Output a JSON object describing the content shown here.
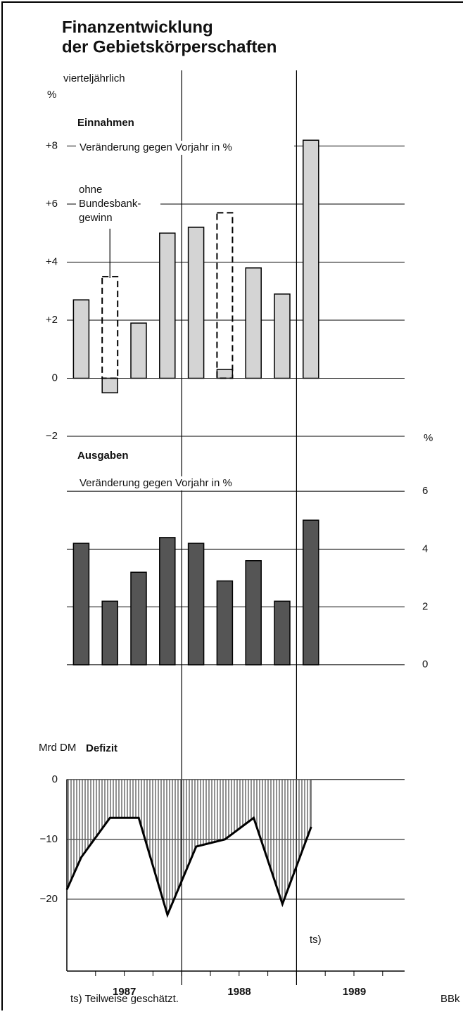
{
  "title_lines": [
    "Finanzentwicklung",
    "der Gebietskörperschaften"
  ],
  "subtitle": "vierteljährlich",
  "footnote": "ts) Teilweise geschätzt.",
  "source": "BBk",
  "chart_data": [
    {
      "type": "bar",
      "title": "Einnahmen",
      "subtitle": "Veränderung gegen Vorjahr in %",
      "y_label": "%",
      "y_axis": "left",
      "categories": [
        null,
        null,
        null,
        null,
        null,
        null,
        null,
        null,
        null
      ],
      "ylim": [
        -2,
        10
      ],
      "yticks": [
        {
          "value": 8,
          "label": "+8"
        },
        {
          "value": 6,
          "label": "+6"
        },
        {
          "value": 4,
          "label": "+4"
        },
        {
          "value": 2,
          "label": "+2"
        },
        0,
        {
          "value": -2,
          "label": "−2"
        }
      ],
      "grid": true,
      "series": [
        {
          "color": "#d4d4d4",
          "values": [
            2.7,
            -0.5,
            1.9,
            5.0,
            5.2,
            0.3,
            3.8,
            2.9,
            8.2
          ]
        },
        {
          "label_lines": [
            "ohne",
            "Bundesbank-",
            "gewinn"
          ],
          "style": "dashed",
          "values": [
            null,
            3.5,
            null,
            null,
            null,
            5.7,
            null,
            null,
            null
          ]
        }
      ]
    },
    {
      "type": "bar",
      "title": "Ausgaben",
      "subtitle": "Veränderung gegen Vorjahr in %",
      "y_label": "%",
      "y_axis": "right",
      "categories": [
        null,
        null,
        null,
        null,
        null,
        null,
        null,
        null,
        null
      ],
      "ylim": [
        -2,
        7.9
      ],
      "yticks": [
        6,
        4,
        2,
        0
      ],
      "grid": true,
      "series": [
        {
          "color": "#555555",
          "values": [
            4.2,
            2.2,
            3.2,
            4.4,
            4.2,
            2.9,
            3.6,
            2.2,
            5.0
          ]
        }
      ]
    },
    {
      "type": "area",
      "title": "Defizit",
      "y_label": "Mrd DM",
      "y_axis": "left",
      "x": [
        0,
        0.5,
        1.5,
        2.5,
        3.5,
        4.5,
        5.5,
        6.5,
        7.5,
        8.5
      ],
      "xlim": [
        0,
        11.75
      ],
      "xticks": [
        {
          "value": 2,
          "label": "1987"
        },
        {
          "value": 6,
          "label": "1988"
        },
        {
          "value": 10,
          "label": "1989"
        }
      ],
      "ylim": [
        -32,
        9.5
      ],
      "yticks": [
        0,
        {
          "value": -10,
          "label": "−10"
        },
        {
          "value": -20,
          "label": "−20"
        }
      ],
      "grid": true,
      "annotation": "ts)",
      "series": [
        {
          "color": "#555555",
          "values": [
            -18.4,
            -13,
            -6.4,
            -6.4,
            -22.6,
            -11.2,
            -10.0,
            -6.4,
            -20.8,
            -7.9
          ]
        }
      ]
    }
  ]
}
